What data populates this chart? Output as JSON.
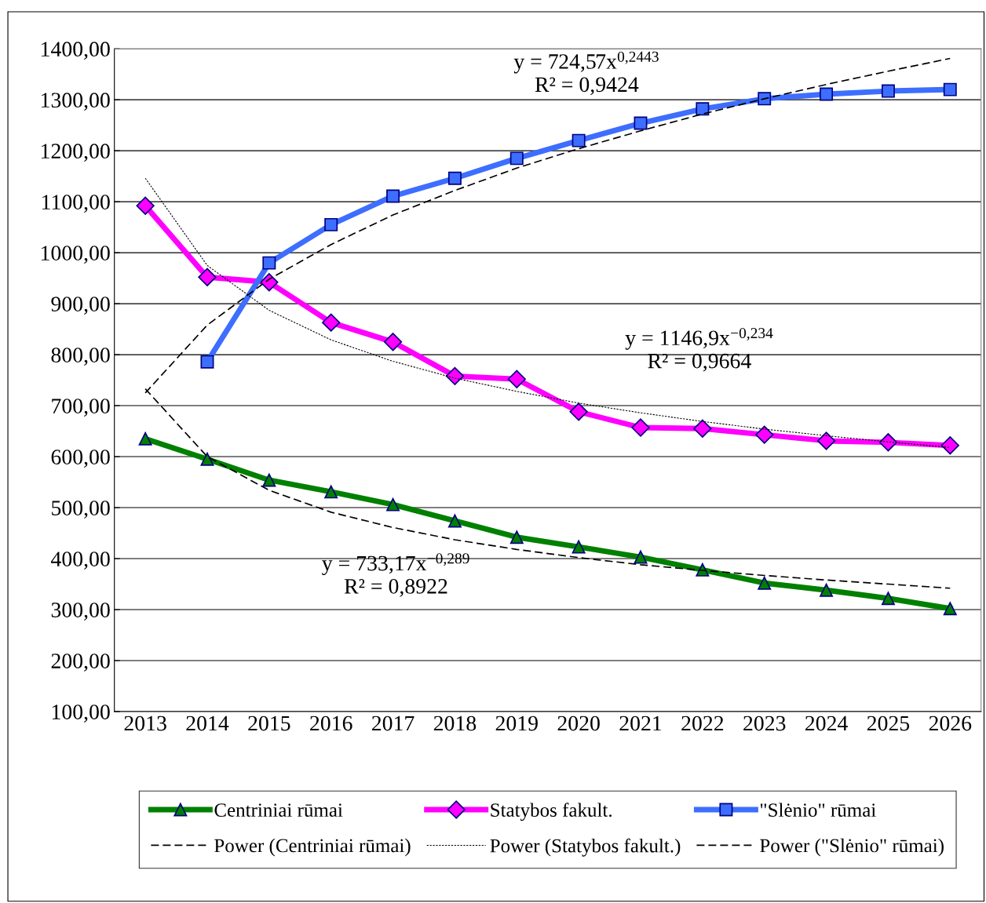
{
  "chart_data": {
    "type": "line",
    "categories": [
      "2013",
      "2014",
      "2015",
      "2016",
      "2017",
      "2018",
      "2019",
      "2020",
      "2021",
      "2022",
      "2023",
      "2024",
      "2025",
      "2026"
    ],
    "series": [
      {
        "name": "Centriniai rūmai",
        "color": "#008000",
        "marker": "triangle",
        "line_style": "solid",
        "values": [
          635,
          595,
          554,
          531,
          506,
          474,
          442,
          423,
          403,
          378,
          352,
          338,
          322,
          302
        ]
      },
      {
        "name": "Statybos fakult.",
        "color": "#ff00ff",
        "marker": "diamond",
        "line_style": "solid",
        "values": [
          1092,
          952,
          942,
          863,
          825,
          758,
          752,
          688,
          657,
          655,
          643,
          631,
          628,
          622
        ]
      },
      {
        "name": "\"Slėnio\" rūmai",
        "color": "#3d6eff",
        "marker": "square",
        "line_style": "solid",
        "values": [
          null,
          786,
          980,
          1055,
          1111,
          1146,
          1185,
          1220,
          1254,
          1282,
          1302,
          1311,
          1317,
          1320
        ]
      },
      {
        "name": "Power (Centriniai rūmai)",
        "color": "#000000",
        "marker": "none",
        "line_style": "dashed",
        "values": [
          733,
          600,
          534,
          491,
          461,
          437,
          418,
          402,
          388,
          377,
          367,
          358,
          350,
          342
        ]
      },
      {
        "name": "Power (Statybos fakult.)",
        "color": "#000000",
        "marker": "none",
        "line_style": "dotted",
        "values": [
          1146,
          975,
          887,
          829,
          787,
          754,
          728,
          705,
          686,
          669,
          654,
          641,
          629,
          618
        ]
      },
      {
        "name": "Power (\"Slėnio\" rūmai)",
        "color": "#000000",
        "marker": "none",
        "line_style": "dashed",
        "values": [
          725,
          858,
          948,
          1016,
          1074,
          1122,
          1166,
          1204,
          1239,
          1272,
          1302,
          1330,
          1356,
          1381
        ]
      }
    ],
    "ylim": [
      100,
      1400
    ],
    "yticks": [
      {
        "value": 100,
        "label": "100,00"
      },
      {
        "value": 200,
        "label": "200,00"
      },
      {
        "value": 300,
        "label": "300,00"
      },
      {
        "value": 400,
        "label": "400,00"
      },
      {
        "value": 500,
        "label": "500,00"
      },
      {
        "value": 600,
        "label": "600,00"
      },
      {
        "value": 700,
        "label": "700,00"
      },
      {
        "value": 800,
        "label": "800,00"
      },
      {
        "value": 900,
        "label": "900,00"
      },
      {
        "value": 1000,
        "label": "1000,00"
      },
      {
        "value": 1100,
        "label": "1100,00"
      },
      {
        "value": 1200,
        "label": "1200,00"
      },
      {
        "value": 1300,
        "label": "1300,00"
      },
      {
        "value": 1400,
        "label": "1400,00"
      }
    ],
    "grid": "y",
    "legend": "bottom",
    "annotations": [
      "y = 724,57x$^{0,2443}$\nR² = 0,9424",
      "y = 1146,9x$^{−0,234}$\nR² = 0,9664",
      "y = 733,17x$^{−0,289}$\nR² = 0,8922"
    ]
  }
}
